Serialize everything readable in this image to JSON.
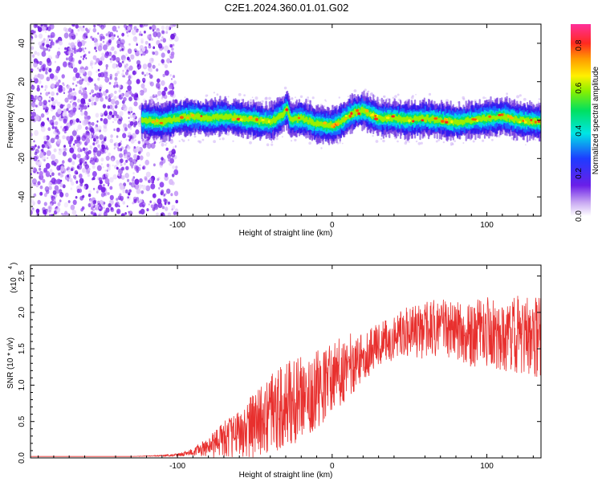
{
  "title": "C2E1.2024.360.01.01.G02",
  "chart_data": [
    {
      "type": "heatmap",
      "title": "",
      "xlabel": "Height of straight line (km)",
      "ylabel": "Frequency (Hz)",
      "xlim": [
        -195,
        135
      ],
      "ylim": [
        -50,
        50
      ],
      "xticks": [
        -100,
        0,
        100
      ],
      "yticks": [
        -40,
        -20,
        0,
        20,
        40
      ],
      "colorbar": {
        "label": "Normalized spectral amplitude",
        "range": [
          0,
          0.9
        ],
        "ticks": [
          "0.0",
          "0.2",
          "0.4",
          "0.6",
          "0.8"
        ]
      },
      "noise_region_end_km": -100,
      "signal_start_km": -123,
      "signal_centerline": [
        [
          -123,
          0
        ],
        [
          -110,
          -1
        ],
        [
          -100,
          1
        ],
        [
          -90,
          2
        ],
        [
          -80,
          1
        ],
        [
          -70,
          2
        ],
        [
          -60,
          1
        ],
        [
          -50,
          0
        ],
        [
          -40,
          -1
        ],
        [
          -32,
          3
        ],
        [
          -29,
          6
        ],
        [
          -27,
          0
        ],
        [
          -20,
          1
        ],
        [
          -10,
          -2
        ],
        [
          0,
          -3
        ],
        [
          5,
          -1
        ],
        [
          10,
          2
        ],
        [
          15,
          4
        ],
        [
          20,
          5
        ],
        [
          25,
          3
        ],
        [
          30,
          1
        ],
        [
          40,
          1
        ],
        [
          50,
          0
        ],
        [
          60,
          1
        ],
        [
          70,
          0
        ],
        [
          80,
          -1
        ],
        [
          90,
          0
        ],
        [
          100,
          1
        ],
        [
          110,
          2
        ],
        [
          120,
          0
        ],
        [
          135,
          -1
        ]
      ]
    },
    {
      "type": "line",
      "title": "",
      "xlabel": "Height of straight line (km)",
      "ylabel": "SNR (10 * v/v)",
      "y_multiplier_label": "(x10",
      "y_multiplier_exp": "4",
      "xlim": [
        -195,
        135
      ],
      "ylim": [
        0,
        2.65
      ],
      "xticks": [
        -100,
        0,
        100
      ],
      "yticks": [
        "0.0",
        "0.5",
        "1.0",
        "1.5",
        "2.0",
        "2.5"
      ],
      "series_color": "#e8302e",
      "series": [
        {
          "x": [
            -195,
            -160,
            -130,
            -110,
            -100,
            -90,
            -80,
            -70,
            -60,
            -50,
            -40,
            -30,
            -20,
            -10,
            0,
            10,
            20,
            30,
            40,
            50,
            60,
            70,
            80,
            90,
            100,
            110,
            120,
            135
          ],
          "y": [
            0.02,
            0.02,
            0.02,
            0.03,
            0.04,
            0.08,
            0.15,
            0.25,
            0.35,
            0.45,
            0.6,
            0.7,
            0.85,
            0.95,
            1.1,
            1.25,
            1.4,
            1.55,
            1.65,
            1.75,
            1.75,
            1.8,
            1.75,
            1.7,
            1.72,
            1.7,
            1.7,
            1.65
          ],
          "spread": [
            0,
            0,
            0,
            0.01,
            0.02,
            0.05,
            0.15,
            0.25,
            0.35,
            0.45,
            0.55,
            0.6,
            0.6,
            0.55,
            0.5,
            0.45,
            0.35,
            0.3,
            0.3,
            0.35,
            0.4,
            0.4,
            0.4,
            0.45,
            0.5,
            0.5,
            0.55,
            0.55
          ]
        }
      ]
    }
  ]
}
